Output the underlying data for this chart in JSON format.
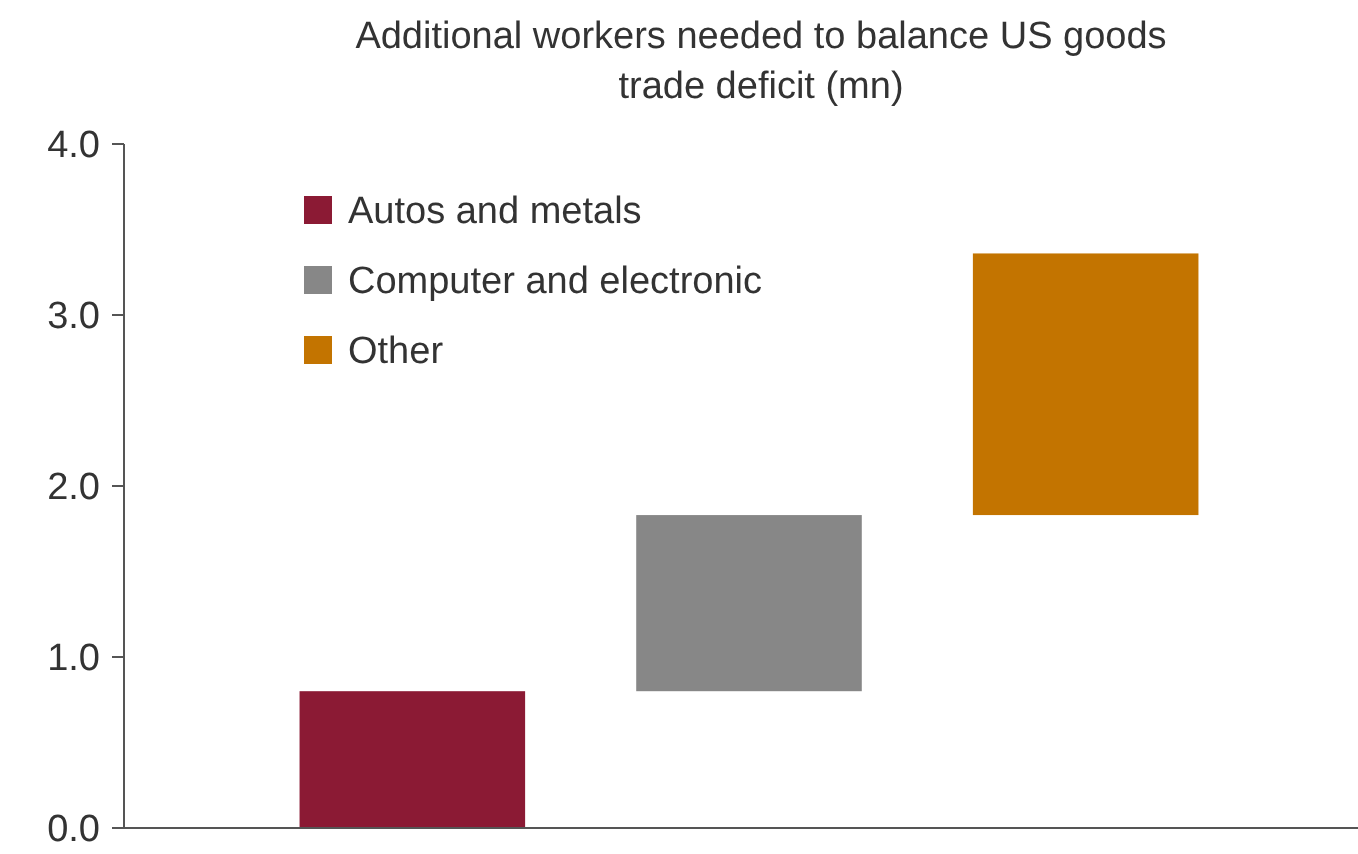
{
  "chart_data": {
    "type": "bar",
    "title": "Additional workers needed to balance US goods trade deficit (mn)",
    "categories": [
      null,
      null,
      null
    ],
    "series": [
      {
        "name": "Autos and metals",
        "color": "#8b1a34",
        "values": [
          0.8,
          null,
          null
        ],
        "base": [
          0,
          null,
          null
        ]
      },
      {
        "name": "Computer and electronic",
        "color": "#878787",
        "values": [
          null,
          1.03,
          null
        ],
        "base": [
          null,
          0.8,
          null
        ]
      },
      {
        "name": "Other",
        "color": "#c37400",
        "values": [
          null,
          null,
          1.53
        ],
        "base": [
          null,
          null,
          1.83
        ]
      }
    ],
    "ylim": [
      0,
      4
    ],
    "yticks": [
      {
        "value": 0,
        "label": "0.0"
      },
      {
        "value": 1,
        "label": "1.0"
      },
      {
        "value": 2,
        "label": "2.0"
      },
      {
        "value": 3,
        "label": "3.0"
      },
      {
        "value": 4,
        "label": "4.0"
      }
    ],
    "grid": false,
    "legend": "top left"
  }
}
